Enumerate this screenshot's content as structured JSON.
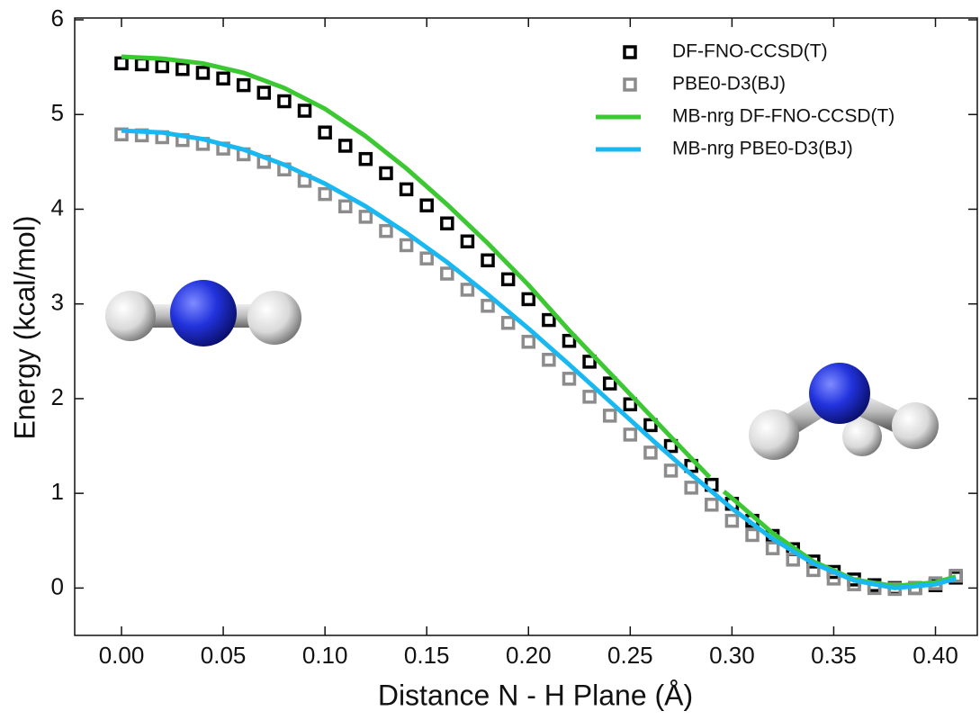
{
  "chart_data": {
    "type": "line",
    "xlabel": "Distance N - H Plane (Å)",
    "ylabel": "Energy (kcal/mol)",
    "xlim": [
      -0.023,
      0.421
    ],
    "ylim": [
      -0.5,
      6.0
    ],
    "xticks": [
      {
        "value": 0,
        "label": "0.00"
      },
      {
        "value": 0.05,
        "label": "0.05"
      },
      {
        "value": 0.1,
        "label": "0.10"
      },
      {
        "value": 0.15,
        "label": "0.15"
      },
      {
        "value": 0.2,
        "label": "0.20"
      },
      {
        "value": 0.25,
        "label": "0.25"
      },
      {
        "value": 0.3,
        "label": "0.30"
      },
      {
        "value": 0.35,
        "label": "0.35"
      },
      {
        "value": 0.4,
        "label": "0.40"
      }
    ],
    "yticks": [
      0,
      1,
      2,
      3,
      4,
      5,
      6
    ],
    "legend": "upper right",
    "series": [
      {
        "name": "DF-FNO-CCSD(T)",
        "style": "marker",
        "color": "#000000",
        "x": [
          0.0,
          0.01,
          0.02,
          0.03,
          0.04,
          0.05,
          0.06,
          0.07,
          0.08,
          0.09,
          0.1,
          0.11,
          0.12,
          0.13,
          0.14,
          0.15,
          0.16,
          0.17,
          0.18,
          0.19,
          0.2,
          0.21,
          0.22,
          0.23,
          0.24,
          0.25,
          0.26,
          0.27,
          0.28,
          0.29,
          0.3,
          0.31,
          0.32,
          0.33,
          0.34,
          0.35,
          0.36,
          0.37,
          0.38,
          0.39,
          0.4,
          0.41
        ],
        "values": [
          5.54,
          5.53,
          5.51,
          5.48,
          5.44,
          5.38,
          5.31,
          5.23,
          5.14,
          5.04,
          4.81,
          4.67,
          4.53,
          4.38,
          4.21,
          4.04,
          3.85,
          3.66,
          3.46,
          3.26,
          3.05,
          2.83,
          2.61,
          2.39,
          2.16,
          1.94,
          1.72,
          1.5,
          1.29,
          1.09,
          0.89,
          0.71,
          0.55,
          0.41,
          0.28,
          0.17,
          0.09,
          0.03,
          0.0,
          0.0,
          0.03,
          0.11
        ]
      },
      {
        "name": "PBE0-D3(BJ)",
        "style": "marker",
        "color": "#8c8c8c",
        "x": [
          0.0,
          0.01,
          0.02,
          0.03,
          0.04,
          0.05,
          0.06,
          0.07,
          0.08,
          0.09,
          0.1,
          0.11,
          0.12,
          0.13,
          0.14,
          0.15,
          0.16,
          0.17,
          0.18,
          0.19,
          0.2,
          0.21,
          0.22,
          0.23,
          0.24,
          0.25,
          0.26,
          0.27,
          0.28,
          0.29,
          0.3,
          0.31,
          0.32,
          0.33,
          0.34,
          0.35,
          0.36,
          0.37,
          0.38,
          0.39,
          0.4,
          0.41
        ],
        "values": [
          4.79,
          4.78,
          4.76,
          4.73,
          4.69,
          4.64,
          4.58,
          4.5,
          4.42,
          4.3,
          4.16,
          4.03,
          3.92,
          3.77,
          3.62,
          3.48,
          3.32,
          3.15,
          2.98,
          2.8,
          2.6,
          2.41,
          2.21,
          2.02,
          1.82,
          1.62,
          1.43,
          1.24,
          1.06,
          0.88,
          0.71,
          0.56,
          0.42,
          0.3,
          0.19,
          0.1,
          0.04,
          0.0,
          -0.01,
          0.0,
          0.05,
          0.13
        ]
      },
      {
        "name": "MB-nrg DF-FNO-CCSD(T)",
        "style": "line",
        "color": "#3cc832",
        "x": [
          0.0,
          0.02,
          0.04,
          0.06,
          0.08,
          0.1,
          0.12,
          0.14,
          0.16,
          0.18,
          0.2,
          0.22,
          0.24,
          0.26,
          0.28,
          0.289,
          0.292,
          0.296,
          0.3,
          0.32,
          0.34,
          0.36,
          0.38,
          0.4,
          0.41
        ],
        "values": [
          5.61,
          5.59,
          5.54,
          5.44,
          5.28,
          5.06,
          4.77,
          4.43,
          4.05,
          3.64,
          3.2,
          2.72,
          2.27,
          1.82,
          1.37,
          1.17,
          null,
          1.02,
          0.95,
          0.58,
          0.28,
          0.09,
          0.02,
          0.06,
          0.12
        ]
      },
      {
        "name": "MB-nrg PBE0-D3(BJ)",
        "style": "line",
        "color": "#1ab8f0",
        "x": [
          0.0,
          0.02,
          0.04,
          0.06,
          0.08,
          0.1,
          0.12,
          0.14,
          0.16,
          0.18,
          0.2,
          0.22,
          0.24,
          0.26,
          0.28,
          0.3,
          0.32,
          0.34,
          0.36,
          0.38,
          0.4,
          0.41
        ],
        "values": [
          4.83,
          4.81,
          4.74,
          4.63,
          4.47,
          4.27,
          4.03,
          3.75,
          3.44,
          3.1,
          2.74,
          2.36,
          1.97,
          1.58,
          1.2,
          0.84,
          0.52,
          0.26,
          0.08,
          0.0,
          0.04,
          0.1
        ]
      }
    ]
  }
}
